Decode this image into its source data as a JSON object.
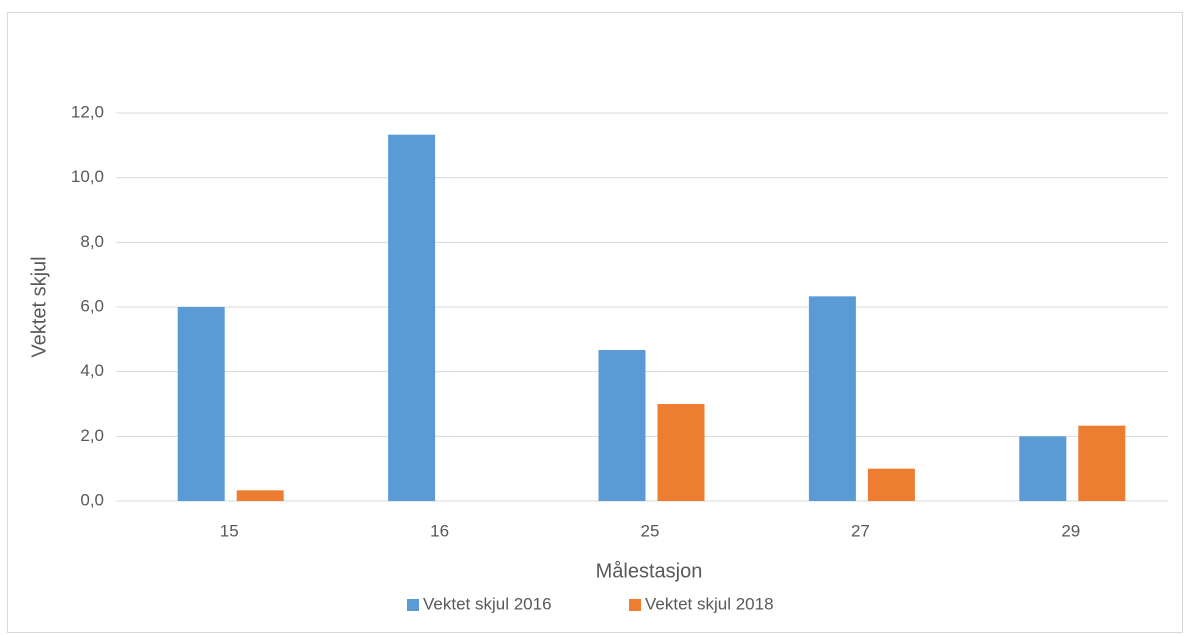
{
  "chart_data": {
    "type": "bar",
    "xlabel": "Målestasjon",
    "ylabel": "Vektet skjul",
    "categories": [
      "15",
      "16",
      "25",
      "27",
      "29"
    ],
    "series": [
      {
        "name": "Vektet skjul 2016",
        "color": "#5b9bd5",
        "values": [
          6.0,
          11.33,
          4.67,
          6.33,
          2.0
        ]
      },
      {
        "name": "Vektet skjul 2018",
        "color": "#ed7d31",
        "values": [
          0.33,
          0,
          3.0,
          1.0,
          2.33
        ]
      }
    ],
    "ylim": [
      0,
      12
    ],
    "yticks": [
      {
        "value": 0,
        "label": "0,0"
      },
      {
        "value": 2,
        "label": "2,0"
      },
      {
        "value": 4,
        "label": "4,0"
      },
      {
        "value": 6,
        "label": "6,0"
      },
      {
        "value": 8,
        "label": "8,0"
      },
      {
        "value": 10,
        "label": "10,0"
      },
      {
        "value": 12,
        "label": "12,0"
      }
    ],
    "grid": true,
    "legend": "bottom"
  }
}
